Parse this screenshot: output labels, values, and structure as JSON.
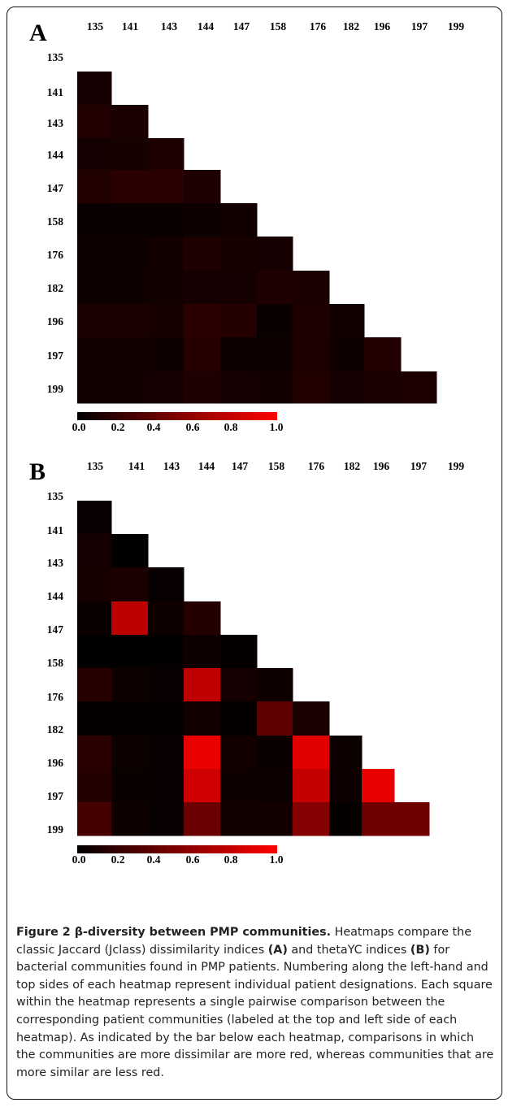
{
  "chart_data": [
    {
      "type": "heatmap",
      "panel_label": "A",
      "labels": [
        "135",
        "141",
        "143",
        "144",
        "147",
        "158",
        "176",
        "182",
        "196",
        "197",
        "199"
      ],
      "colorbar": {
        "ticks": [
          "0.0",
          "0.2",
          "0.4",
          "0.6",
          "0.8",
          "1.0"
        ],
        "range": [
          0,
          1
        ],
        "colors": [
          "#000000",
          "#ff0000"
        ]
      },
      "values": [
        [
          0.08
        ],
        [
          0.13,
          0.1
        ],
        [
          0.08,
          0.09,
          0.12
        ],
        [
          0.13,
          0.17,
          0.17,
          0.12
        ],
        [
          0.04,
          0.04,
          0.04,
          0.05,
          0.07
        ],
        [
          0.05,
          0.05,
          0.07,
          0.12,
          0.09,
          0.08
        ],
        [
          0.06,
          0.06,
          0.07,
          0.08,
          0.08,
          0.12,
          0.1
        ],
        [
          0.1,
          0.1,
          0.09,
          0.17,
          0.14,
          0.04,
          0.12,
          0.07
        ],
        [
          0.07,
          0.07,
          0.06,
          0.15,
          0.06,
          0.05,
          0.11,
          0.06,
          0.14
        ],
        [
          0.07,
          0.07,
          0.08,
          0.12,
          0.08,
          0.07,
          0.13,
          0.08,
          0.1,
          0.11
        ]
      ]
    },
    {
      "type": "heatmap",
      "panel_label": "B",
      "labels": [
        "135",
        "141",
        "143",
        "144",
        "147",
        "158",
        "176",
        "182",
        "196",
        "197",
        "199"
      ],
      "colorbar": {
        "ticks": [
          "0.0",
          "0.2",
          "0.4",
          "0.6",
          "0.8",
          "1.0"
        ],
        "range": [
          0,
          1
        ],
        "colors": [
          "#000000",
          "#ff0000"
        ]
      },
      "values": [
        [
          0.03
        ],
        [
          0.08,
          0.01
        ],
        [
          0.09,
          0.1,
          0.03
        ],
        [
          0.04,
          0.74,
          0.06,
          0.14
        ],
        [
          0.01,
          0.01,
          0.01,
          0.05,
          0.02
        ],
        [
          0.15,
          0.05,
          0.03,
          0.75,
          0.08,
          0.06
        ],
        [
          0.02,
          0.02,
          0.02,
          0.07,
          0.02,
          0.36,
          0.1
        ],
        [
          0.17,
          0.05,
          0.03,
          0.92,
          0.07,
          0.04,
          0.88,
          0.05
        ],
        [
          0.14,
          0.04,
          0.03,
          0.82,
          0.06,
          0.05,
          0.77,
          0.05,
          0.91
        ],
        [
          0.27,
          0.06,
          0.03,
          0.42,
          0.07,
          0.07,
          0.52,
          0.02,
          0.44,
          0.44
        ]
      ]
    }
  ],
  "caption": {
    "fig_title": "Figure 2 β-diversity between PMP communities.",
    "text_1": " Heatmaps compare the classic Jaccard (Jclass) dissimilarity indices ",
    "ref_a": "(A)",
    "text_2": " and thetaYC indices ",
    "ref_b": "(B)",
    "text_3": " for bacterial communities found in PMP patients. Numbering along the left-hand and top sides of each heatmap represent individual patient designations. Each square within the heatmap represents a single pairwise comparison between the corresponding patient communities (labeled at the top and left side of each heatmap). As indicated by the bar below each heatmap, comparisons in which the communities are more dissimilar are more red, whereas communities that are more similar are less red."
  }
}
